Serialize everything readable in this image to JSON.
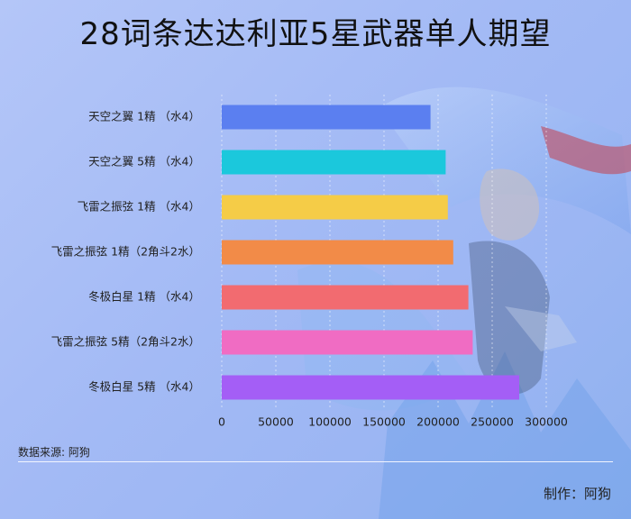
{
  "title": "28词条达达利亚5星武器单人期望",
  "source_label": "数据来源: 阿狗",
  "credit_label": "制作：阿狗",
  "chart_data": {
    "type": "bar",
    "orientation": "horizontal",
    "title": "28词条达达利亚5星武器单人期望",
    "categories": [
      "天空之翼 1精 （水4）",
      "天空之翼 5精 （水4）",
      "飞雷之振弦 1精 （水4）",
      "飞雷之振弦 1精（2角斗2水）",
      "冬极白星 1精 （水4）",
      "飞雷之振弦 5精（2角斗2水）",
      "冬极白星 5精 （水4）"
    ],
    "values": [
      193000,
      207000,
      209000,
      214000,
      228000,
      232000,
      275000
    ],
    "colors": [
      "#5b7ff0",
      "#1bc8dc",
      "#f5cc47",
      "#f28b48",
      "#f26b70",
      "#f06cc3",
      "#a45ef6"
    ],
    "xlim": [
      0,
      300000
    ],
    "xticks": [
      0,
      50000,
      100000,
      150000,
      200000,
      250000,
      300000
    ],
    "xtick_labels": [
      "0",
      "50000",
      "100000",
      "150000",
      "200000",
      "250000",
      "300000"
    ],
    "grid": "vertical",
    "legend": "none"
  }
}
